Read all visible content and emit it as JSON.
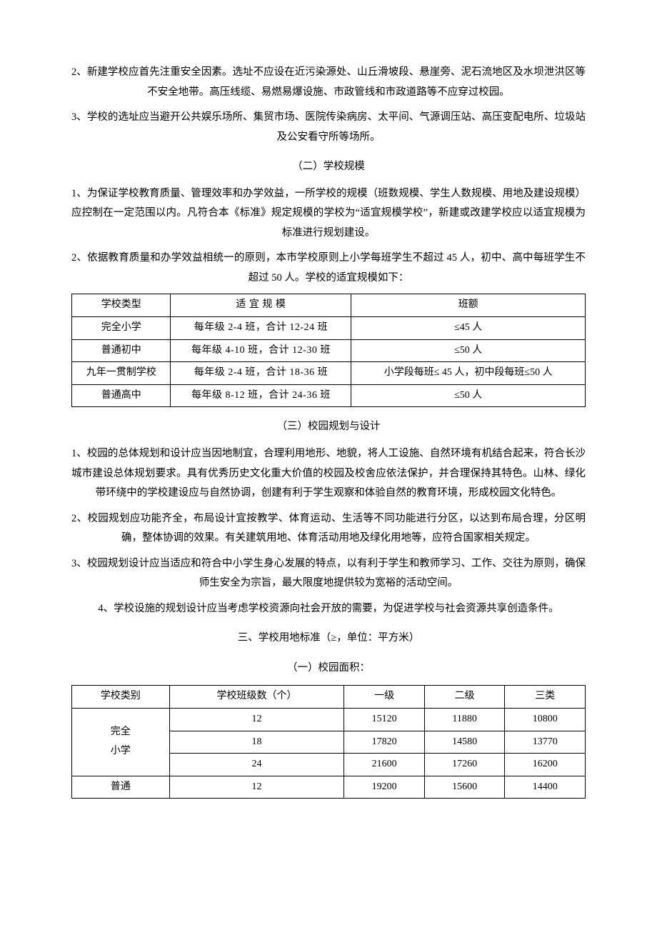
{
  "paragraphs": {
    "p2": "2、新建学校应首先注重安全因素。选址不应设在近污染源处、山丘滑坡段、悬崖旁、泥石流地区及水坝泄洪区等不安全地带。高压线缆、易燃易爆设施、市政管线和市政道路等不应穿过校园。",
    "p3": "3、学校的选址应当避开公共娱乐场所、集贸市场、医院传染病房、太平间、气源调压站、高压变配电所、垃圾站及公安看守所等场所。",
    "s2_title": "（二）学校规模",
    "s2_p1": "1、为保证学校教育质量、管理效率和办学效益，一所学校的规模（班数规模、学生人数规模、用地及建设规模）应控制在一定范围以内。凡符合本《标准》规定规模的学校为“适宜规模学校”，新建或改建学校应以适宜规模为标准进行规划建设。",
    "s2_p2": "2、依据教育质量和办学效益相统一的原则，本市学校原则上小学每班学生不超过 45 人，初中、高中每班学生不超过 50 人。学校的适宜规模如下：",
    "s3_title": "（三）校园规划与设计",
    "s3_p1": "1、校园的总体规划和设计应当因地制宜，合理利用地形、地貌，将人工设施、自然环境有机结合起来，符合长沙城市建设总体规划要求。具有优秀历史文化重大价值的校园及校舍应依法保护，并合理保持其特色。山林、绿化带环绕中的学校建设应与自然协调，创建有利于学生观察和体验自然的教育环境，形成校园文化特色。",
    "s3_p2": "2、校园规划应功能齐全，布局设计宜按教学、体育运动、生活等不同功能进行分区，以达到布局合理，分区明确，整体协调的效果。有关建筑用地、体育活动用地及绿化用地等，应符合国家相关规定。",
    "s3_p3": "3、校园规划设计应当适应和符合中小学生身心发展的特点，以有利于学生和教师学习、工作、交往为原则，确保师生安全为宗旨，最大限度地提供较为宽裕的活动空间。",
    "s3_p4": "4、学校设施的规划设计应当考虑学校资源向社会开放的需要，为促进学校与社会资源共享创造条件。",
    "land_title": "三、学校用地标准（≥，单位：平方米）",
    "land_sub": "（一）校园面积："
  },
  "table_scale": {
    "header": [
      "学校类型",
      "适 宜 规 模",
      "班额"
    ],
    "rows": [
      [
        "完全小学",
        "每年级 2-4 班，合计 12-24 班",
        "≤45 人"
      ],
      [
        "普通初中",
        "每年级 4-10 班，合计 12-30 班",
        "≤50 人"
      ],
      [
        "九年一贯制学校",
        "每年级 2-4 班，合计 18-36 班",
        "小学段每班≤ 45 人，初中段每班≤50 人"
      ],
      [
        "普通高中",
        "每年级 8-12 班，合计 24-36 班",
        "≤50 人"
      ]
    ]
  },
  "table_area": {
    "header": [
      "学校类别",
      "学校班级数（个）",
      "一级",
      "二级",
      "三类"
    ],
    "groups": [
      {
        "type_lines": [
          "完全",
          "小学"
        ],
        "rows": [
          [
            "12",
            "15120",
            "11880",
            "10800"
          ],
          [
            "18",
            "17820",
            "14580",
            "13770"
          ],
          [
            "24",
            "21600",
            "17260",
            "16200"
          ]
        ]
      },
      {
        "type_lines": [
          "普通"
        ],
        "rows": [
          [
            "12",
            "19200",
            "15600",
            "14400"
          ]
        ]
      }
    ]
  }
}
